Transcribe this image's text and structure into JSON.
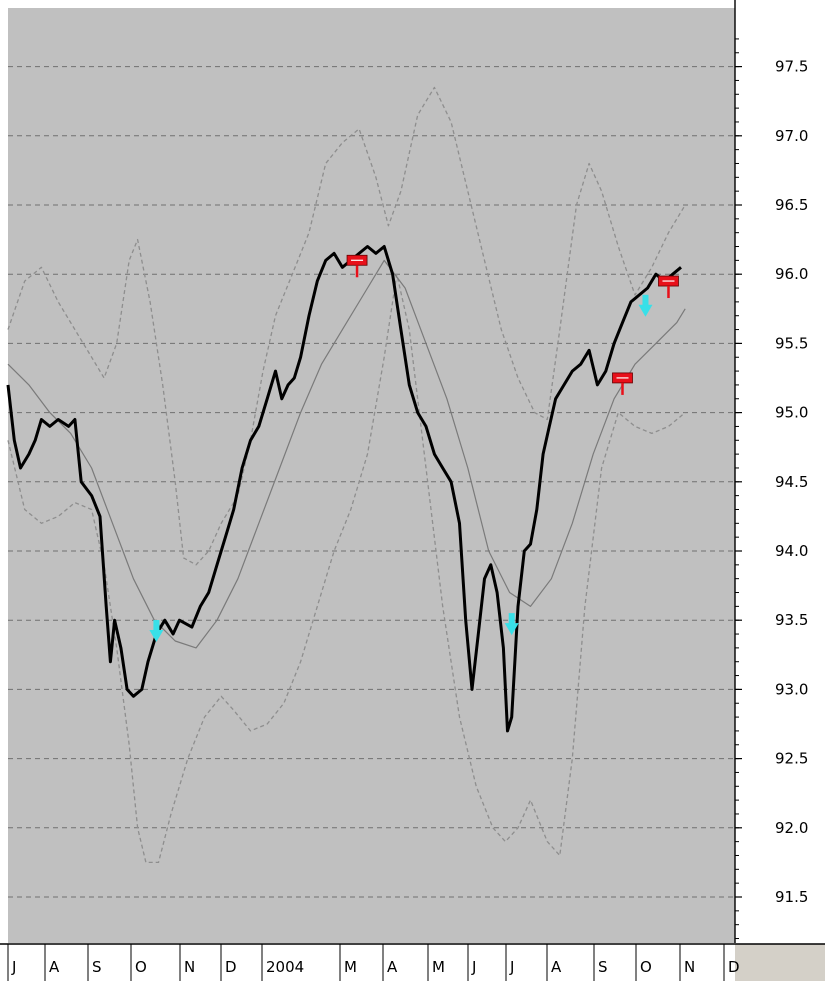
{
  "colors": {
    "plot_bg": "#c0c0c0",
    "gutter_bg": "#ffffff",
    "grid": "#707070",
    "price": "#000000",
    "moving_average": "#7a7a7a",
    "band": "#8e8e8e",
    "sell_marker": "#e8101a",
    "buy_marker": "#38e0e8"
  },
  "chart_data": {
    "type": "line",
    "title": "",
    "xlabel": "",
    "ylabel": "",
    "ylim": [
      91.1,
      97.75
    ],
    "grid": true,
    "y_ticks": [
      "91.5",
      "92.0",
      "92.5",
      "93.0",
      "93.5",
      "94.0",
      "94.5",
      "95.0",
      "95.5",
      "96.0",
      "96.5",
      "97.0",
      "97.5"
    ],
    "x_tick_labels": [
      "J",
      "A",
      "S",
      "O",
      "N",
      "D",
      "2004",
      "M",
      "A",
      "M",
      "J",
      "J",
      "A",
      "S",
      "O",
      "N",
      "D"
    ],
    "x_range_months": [
      0,
      17.2
    ],
    "series": [
      {
        "key": "price",
        "points": [
          [
            0.0,
            95.2
          ],
          [
            0.15,
            94.8
          ],
          [
            0.3,
            94.6
          ],
          [
            0.5,
            94.7
          ],
          [
            0.65,
            94.8
          ],
          [
            0.8,
            94.95
          ],
          [
            1.0,
            94.9
          ],
          [
            1.2,
            94.95
          ],
          [
            1.45,
            94.9
          ],
          [
            1.6,
            94.95
          ],
          [
            1.75,
            94.5
          ],
          [
            2.0,
            94.4
          ],
          [
            2.2,
            94.25
          ],
          [
            2.35,
            93.6
          ],
          [
            2.45,
            93.2
          ],
          [
            2.55,
            93.5
          ],
          [
            2.7,
            93.3
          ],
          [
            2.85,
            93.0
          ],
          [
            3.0,
            92.95
          ],
          [
            3.2,
            93.0
          ],
          [
            3.35,
            93.2
          ],
          [
            3.55,
            93.4
          ],
          [
            3.75,
            93.5
          ],
          [
            3.95,
            93.4
          ],
          [
            4.1,
            93.5
          ],
          [
            4.4,
            93.45
          ],
          [
            4.6,
            93.6
          ],
          [
            4.8,
            93.7
          ],
          [
            5.0,
            93.9
          ],
          [
            5.2,
            94.1
          ],
          [
            5.4,
            94.3
          ],
          [
            5.6,
            94.6
          ],
          [
            5.8,
            94.8
          ],
          [
            6.0,
            94.9
          ],
          [
            6.2,
            95.1
          ],
          [
            6.4,
            95.3
          ],
          [
            6.55,
            95.1
          ],
          [
            6.7,
            95.2
          ],
          [
            6.85,
            95.25
          ],
          [
            7.0,
            95.4
          ],
          [
            7.2,
            95.7
          ],
          [
            7.4,
            95.95
          ],
          [
            7.6,
            96.1
          ],
          [
            7.8,
            96.15
          ],
          [
            8.0,
            96.05
          ],
          [
            8.2,
            96.1
          ],
          [
            8.4,
            96.15
          ],
          [
            8.6,
            96.2
          ],
          [
            8.8,
            96.15
          ],
          [
            9.0,
            96.2
          ],
          [
            9.2,
            96.0
          ],
          [
            9.4,
            95.6
          ],
          [
            9.6,
            95.2
          ],
          [
            9.8,
            95.0
          ],
          [
            10.0,
            94.9
          ],
          [
            10.2,
            94.7
          ],
          [
            10.4,
            94.6
          ],
          [
            10.6,
            94.5
          ],
          [
            10.8,
            94.2
          ],
          [
            10.95,
            93.5
          ],
          [
            11.1,
            93.0
          ],
          [
            11.25,
            93.4
          ],
          [
            11.4,
            93.8
          ],
          [
            11.55,
            93.9
          ],
          [
            11.7,
            93.7
          ],
          [
            11.85,
            93.3
          ],
          [
            11.95,
            92.7
          ],
          [
            12.05,
            92.8
          ],
          [
            12.2,
            93.6
          ],
          [
            12.35,
            94.0
          ],
          [
            12.5,
            94.05
          ],
          [
            12.65,
            94.3
          ],
          [
            12.8,
            94.7
          ],
          [
            12.95,
            94.9
          ],
          [
            13.1,
            95.1
          ],
          [
            13.3,
            95.2
          ],
          [
            13.5,
            95.3
          ],
          [
            13.7,
            95.35
          ],
          [
            13.9,
            95.45
          ],
          [
            14.1,
            95.2
          ],
          [
            14.3,
            95.3
          ],
          [
            14.5,
            95.5
          ],
          [
            14.7,
            95.65
          ],
          [
            14.9,
            95.8
          ],
          [
            15.1,
            95.85
          ],
          [
            15.3,
            95.9
          ],
          [
            15.5,
            96.0
          ],
          [
            15.7,
            95.95
          ],
          [
            15.9,
            96.0
          ],
          [
            16.1,
            96.05
          ]
        ]
      },
      {
        "key": "moving_average",
        "points": [
          [
            0.0,
            95.35
          ],
          [
            0.5,
            95.2
          ],
          [
            1.0,
            95.0
          ],
          [
            1.5,
            94.85
          ],
          [
            2.0,
            94.6
          ],
          [
            2.5,
            94.2
          ],
          [
            3.0,
            93.8
          ],
          [
            3.5,
            93.5
          ],
          [
            4.0,
            93.35
          ],
          [
            4.5,
            93.3
          ],
          [
            5.0,
            93.5
          ],
          [
            5.5,
            93.8
          ],
          [
            6.0,
            94.2
          ],
          [
            6.5,
            94.6
          ],
          [
            7.0,
            95.0
          ],
          [
            7.5,
            95.35
          ],
          [
            8.0,
            95.6
          ],
          [
            8.5,
            95.85
          ],
          [
            9.0,
            96.1
          ],
          [
            9.5,
            95.9
          ],
          [
            10.0,
            95.5
          ],
          [
            10.5,
            95.1
          ],
          [
            11.0,
            94.6
          ],
          [
            11.5,
            94.0
          ],
          [
            12.0,
            93.7
          ],
          [
            12.5,
            93.6
          ],
          [
            13.0,
            93.8
          ],
          [
            13.5,
            94.2
          ],
          [
            14.0,
            94.7
          ],
          [
            14.5,
            95.1
          ],
          [
            15.0,
            95.35
          ],
          [
            15.5,
            95.5
          ],
          [
            16.0,
            95.65
          ],
          [
            16.2,
            95.75
          ]
        ]
      },
      {
        "key": "upper_band",
        "points": [
          [
            0.0,
            95.6
          ],
          [
            0.4,
            95.95
          ],
          [
            0.8,
            96.05
          ],
          [
            1.2,
            95.8
          ],
          [
            1.6,
            95.6
          ],
          [
            2.0,
            95.4
          ],
          [
            2.3,
            95.25
          ],
          [
            2.6,
            95.5
          ],
          [
            2.9,
            96.1
          ],
          [
            3.1,
            96.25
          ],
          [
            3.4,
            95.8
          ],
          [
            3.7,
            95.2
          ],
          [
            4.0,
            94.5
          ],
          [
            4.2,
            93.95
          ],
          [
            4.5,
            93.9
          ],
          [
            4.8,
            94.0
          ],
          [
            5.1,
            94.2
          ],
          [
            5.5,
            94.4
          ],
          [
            5.8,
            94.8
          ],
          [
            6.1,
            95.3
          ],
          [
            6.4,
            95.7
          ],
          [
            6.8,
            96.0
          ],
          [
            7.2,
            96.3
          ],
          [
            7.6,
            96.8
          ],
          [
            8.0,
            96.95
          ],
          [
            8.4,
            97.05
          ],
          [
            8.8,
            96.7
          ],
          [
            9.1,
            96.35
          ],
          [
            9.4,
            96.6
          ],
          [
            9.8,
            97.15
          ],
          [
            10.2,
            97.35
          ],
          [
            10.6,
            97.1
          ],
          [
            11.0,
            96.6
          ],
          [
            11.4,
            96.1
          ],
          [
            11.8,
            95.6
          ],
          [
            12.2,
            95.25
          ],
          [
            12.6,
            95.0
          ],
          [
            12.9,
            94.95
          ],
          [
            13.2,
            95.6
          ],
          [
            13.6,
            96.5
          ],
          [
            13.9,
            96.8
          ],
          [
            14.2,
            96.6
          ],
          [
            14.6,
            96.2
          ],
          [
            15.0,
            95.85
          ],
          [
            15.4,
            96.05
          ],
          [
            15.8,
            96.3
          ],
          [
            16.2,
            96.5
          ]
        ]
      },
      {
        "key": "lower_band",
        "points": [
          [
            0.0,
            94.8
          ],
          [
            0.4,
            94.3
          ],
          [
            0.8,
            94.2
          ],
          [
            1.2,
            94.25
          ],
          [
            1.6,
            94.35
          ],
          [
            2.0,
            94.3
          ],
          [
            2.3,
            93.9
          ],
          [
            2.6,
            93.3
          ],
          [
            2.9,
            92.6
          ],
          [
            3.1,
            92.0
          ],
          [
            3.3,
            91.75
          ],
          [
            3.6,
            91.75
          ],
          [
            3.9,
            92.1
          ],
          [
            4.3,
            92.5
          ],
          [
            4.7,
            92.8
          ],
          [
            5.1,
            92.95
          ],
          [
            5.4,
            92.85
          ],
          [
            5.8,
            92.7
          ],
          [
            6.2,
            92.75
          ],
          [
            6.6,
            92.9
          ],
          [
            7.0,
            93.2
          ],
          [
            7.4,
            93.6
          ],
          [
            7.8,
            94.0
          ],
          [
            8.2,
            94.3
          ],
          [
            8.6,
            94.7
          ],
          [
            9.0,
            95.4
          ],
          [
            9.3,
            96.0
          ],
          [
            9.6,
            95.6
          ],
          [
            10.0,
            94.6
          ],
          [
            10.4,
            93.6
          ],
          [
            10.8,
            92.8
          ],
          [
            11.2,
            92.3
          ],
          [
            11.6,
            92.0
          ],
          [
            11.9,
            91.9
          ],
          [
            12.2,
            92.0
          ],
          [
            12.5,
            92.2
          ],
          [
            12.9,
            91.9
          ],
          [
            13.2,
            91.8
          ],
          [
            13.5,
            92.5
          ],
          [
            13.8,
            93.6
          ],
          [
            14.2,
            94.6
          ],
          [
            14.6,
            95.0
          ],
          [
            15.0,
            94.9
          ],
          [
            15.4,
            94.85
          ],
          [
            15.8,
            94.9
          ],
          [
            16.2,
            95.0
          ]
        ]
      }
    ],
    "signals": [
      {
        "type": "buy",
        "x": 3.55,
        "y": 93.4
      },
      {
        "type": "sell",
        "x": 8.35,
        "y": 96.05
      },
      {
        "type": "buy",
        "x": 12.05,
        "y": 93.45
      },
      {
        "type": "sell",
        "x": 14.7,
        "y": 95.2
      },
      {
        "type": "buy",
        "x": 15.25,
        "y": 95.75
      },
      {
        "type": "sell",
        "x": 15.8,
        "y": 95.9
      }
    ]
  }
}
